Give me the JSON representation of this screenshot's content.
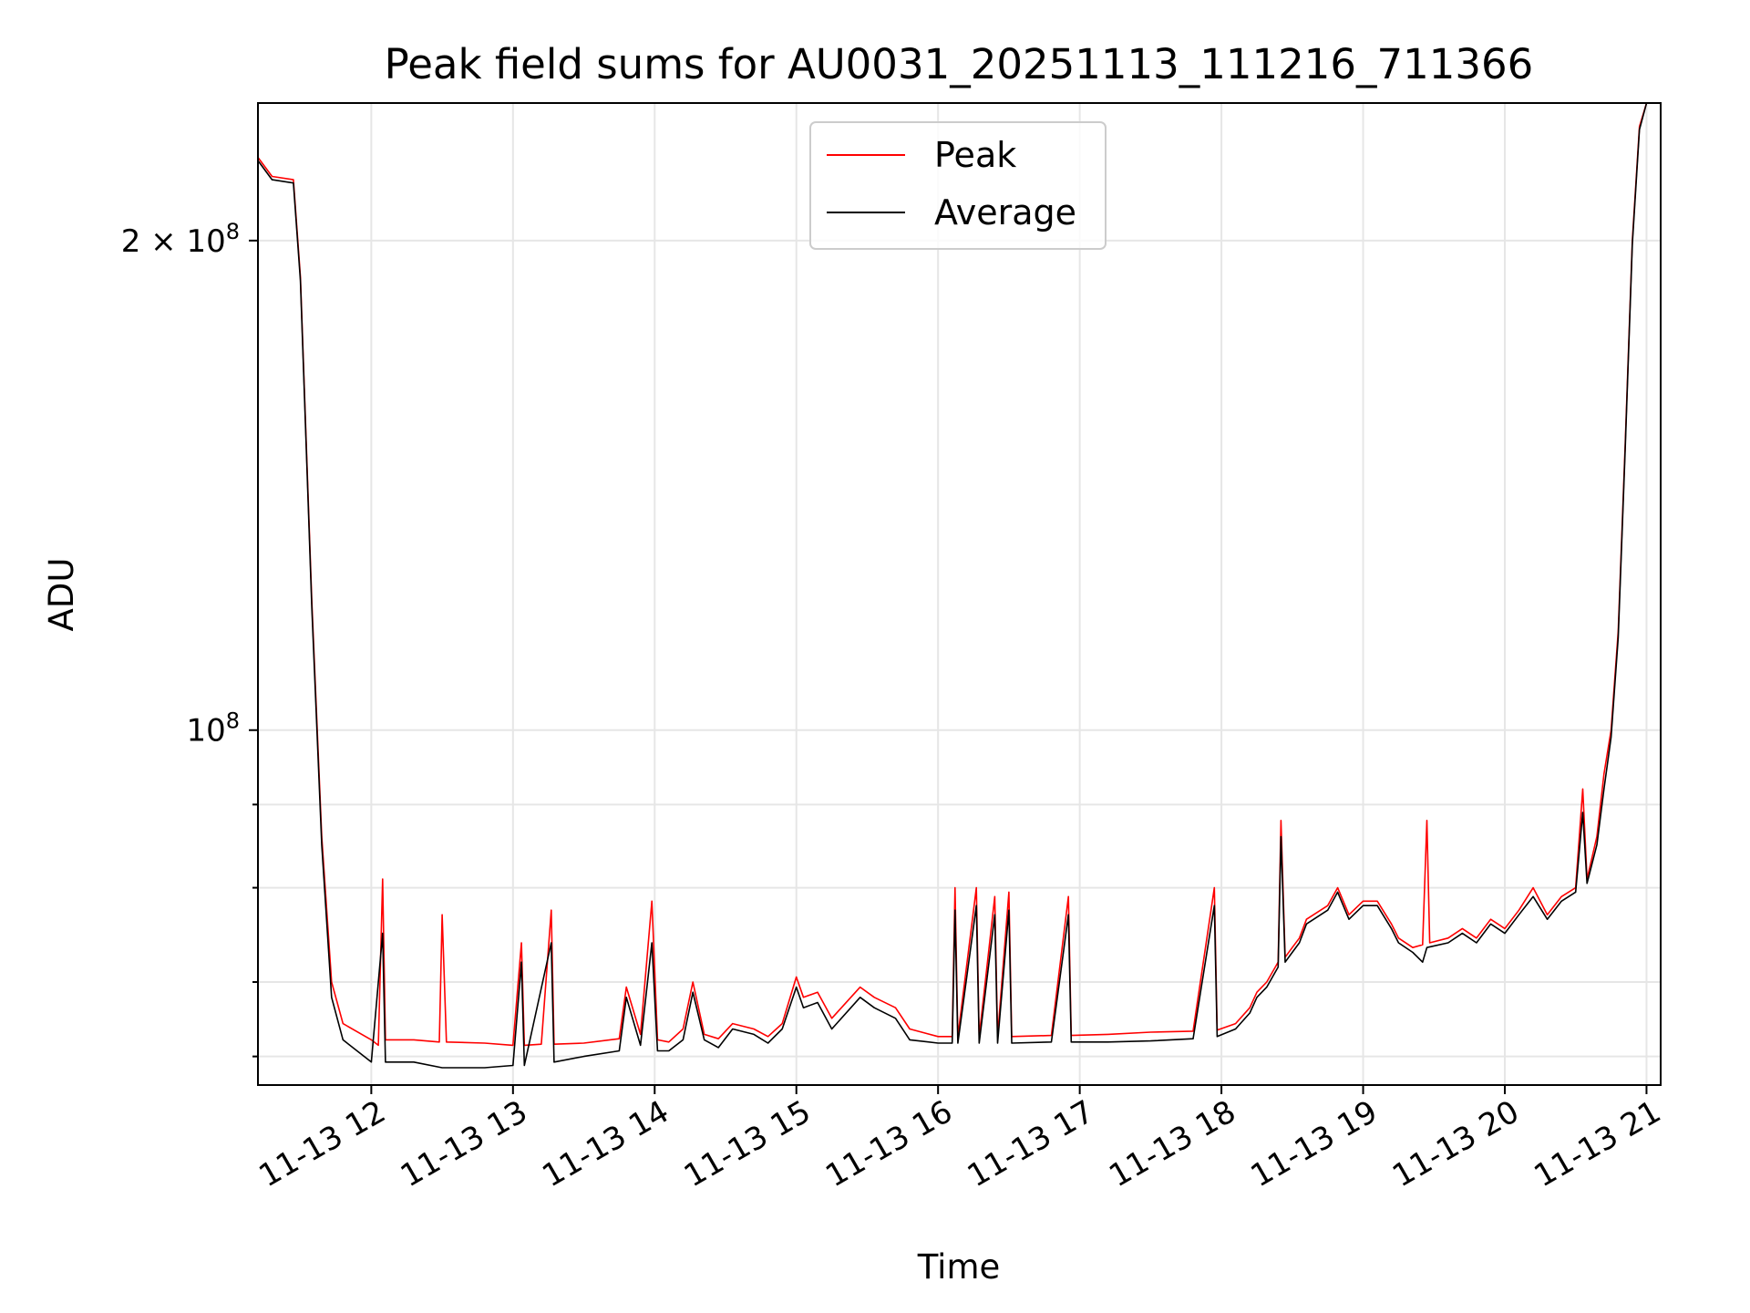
{
  "chart_data": {
    "type": "line",
    "title": "Peak field sums for AU0031_20251113_111216_711366",
    "xlabel": "Time",
    "ylabel": "ADU",
    "x_range_hours": [
      11.2,
      21.1
    ],
    "y_scale": "log",
    "ylim": [
      60500000,
      243000000
    ],
    "grid": true,
    "legend_position": "upper center",
    "x_ticks": [
      {
        "value": 12,
        "label": "11-13 12"
      },
      {
        "value": 13,
        "label": "11-13 13"
      },
      {
        "value": 14,
        "label": "11-13 14"
      },
      {
        "value": 15,
        "label": "11-13 15"
      },
      {
        "value": 16,
        "label": "11-13 16"
      },
      {
        "value": 17,
        "label": "11-13 17"
      },
      {
        "value": 18,
        "label": "11-13 18"
      },
      {
        "value": 19,
        "label": "11-13 19"
      },
      {
        "value": 20,
        "label": "11-13 20"
      },
      {
        "value": 21,
        "label": "11-13 21"
      }
    ],
    "y_major_ticks": [
      {
        "value": 100000000,
        "label": "10",
        "exp": "8"
      },
      {
        "value": 200000000,
        "label": "2 × 10",
        "exp": "8"
      }
    ],
    "y_minor_ticks": [
      63000000,
      70000000,
      80000000,
      90000000
    ],
    "series": [
      {
        "name": "Peak",
        "color": "#ff0000",
        "points": [
          [
            11.2,
            225000000
          ],
          [
            11.3,
            219000000
          ],
          [
            11.45,
            218000000
          ],
          [
            11.5,
            190000000
          ],
          [
            11.58,
            120000000
          ],
          [
            11.65,
            86000000
          ],
          [
            11.72,
            70000000
          ],
          [
            11.8,
            66000000
          ],
          [
            12.0,
            64500000
          ],
          [
            12.05,
            64000000
          ],
          [
            12.08,
            81000000
          ],
          [
            12.1,
            64500000
          ],
          [
            12.3,
            64500000
          ],
          [
            12.48,
            64300000
          ],
          [
            12.5,
            77000000
          ],
          [
            12.53,
            64300000
          ],
          [
            12.8,
            64200000
          ],
          [
            13.0,
            64000000
          ],
          [
            13.06,
            74000000
          ],
          [
            13.08,
            64000000
          ],
          [
            13.2,
            64100000
          ],
          [
            13.27,
            77500000
          ],
          [
            13.29,
            64100000
          ],
          [
            13.5,
            64200000
          ],
          [
            13.75,
            64600000
          ],
          [
            13.8,
            69500000
          ],
          [
            13.9,
            65000000
          ],
          [
            13.98,
            78500000
          ],
          [
            14.02,
            64500000
          ],
          [
            14.1,
            64300000
          ],
          [
            14.2,
            65500000
          ],
          [
            14.27,
            70000000
          ],
          [
            14.35,
            65000000
          ],
          [
            14.45,
            64600000
          ],
          [
            14.55,
            66000000
          ],
          [
            14.7,
            65500000
          ],
          [
            14.8,
            64800000
          ],
          [
            14.9,
            66000000
          ],
          [
            15.0,
            70500000
          ],
          [
            15.05,
            68500000
          ],
          [
            15.15,
            69000000
          ],
          [
            15.25,
            66500000
          ],
          [
            15.45,
            69500000
          ],
          [
            15.55,
            68500000
          ],
          [
            15.7,
            67500000
          ],
          [
            15.8,
            65500000
          ],
          [
            16.0,
            64800000
          ],
          [
            16.1,
            64800000
          ],
          [
            16.12,
            80000000
          ],
          [
            16.14,
            64800000
          ],
          [
            16.27,
            80000000
          ],
          [
            16.29,
            64800000
          ],
          [
            16.4,
            79000000
          ],
          [
            16.42,
            64800000
          ],
          [
            16.5,
            79500000
          ],
          [
            16.52,
            64800000
          ],
          [
            16.8,
            64900000
          ],
          [
            16.92,
            79000000
          ],
          [
            16.94,
            64900000
          ],
          [
            17.2,
            65000000
          ],
          [
            17.5,
            65200000
          ],
          [
            17.8,
            65300000
          ],
          [
            17.95,
            80000000
          ],
          [
            17.97,
            65400000
          ],
          [
            18.1,
            66000000
          ],
          [
            18.2,
            67500000
          ],
          [
            18.25,
            69000000
          ],
          [
            18.32,
            70000000
          ],
          [
            18.4,
            72000000
          ],
          [
            18.42,
            88000000
          ],
          [
            18.45,
            72500000
          ],
          [
            18.5,
            73500000
          ],
          [
            18.55,
            74500000
          ],
          [
            18.6,
            76500000
          ],
          [
            18.75,
            78000000
          ],
          [
            18.82,
            80000000
          ],
          [
            18.9,
            77000000
          ],
          [
            19.0,
            78500000
          ],
          [
            19.1,
            78500000
          ],
          [
            19.2,
            76000000
          ],
          [
            19.25,
            74500000
          ],
          [
            19.35,
            73500000
          ],
          [
            19.42,
            73800000
          ],
          [
            19.45,
            88000000
          ],
          [
            19.47,
            74000000
          ],
          [
            19.6,
            74500000
          ],
          [
            19.7,
            75500000
          ],
          [
            19.8,
            74500000
          ],
          [
            19.9,
            76500000
          ],
          [
            20.0,
            75500000
          ],
          [
            20.1,
            77500000
          ],
          [
            20.2,
            80000000
          ],
          [
            20.3,
            77000000
          ],
          [
            20.4,
            79000000
          ],
          [
            20.5,
            80000000
          ],
          [
            20.55,
            92000000
          ],
          [
            20.58,
            81000000
          ],
          [
            20.65,
            86000000
          ],
          [
            20.7,
            94000000
          ],
          [
            20.75,
            100000000
          ],
          [
            20.8,
            115000000
          ],
          [
            20.85,
            150000000
          ],
          [
            20.9,
            200000000
          ],
          [
            20.95,
            235000000
          ],
          [
            21.0,
            243000000
          ]
        ]
      },
      {
        "name": "Average",
        "color": "#000000",
        "points": [
          [
            11.2,
            224000000
          ],
          [
            11.3,
            218000000
          ],
          [
            11.45,
            217000000
          ],
          [
            11.5,
            189000000
          ],
          [
            11.58,
            119000000
          ],
          [
            11.65,
            85000000
          ],
          [
            11.72,
            68500000
          ],
          [
            11.8,
            64500000
          ],
          [
            12.0,
            62500000
          ],
          [
            12.08,
            75000000
          ],
          [
            12.1,
            62500000
          ],
          [
            12.3,
            62500000
          ],
          [
            12.5,
            62000000
          ],
          [
            12.8,
            62000000
          ],
          [
            13.0,
            62200000
          ],
          [
            13.06,
            72000000
          ],
          [
            13.08,
            62200000
          ],
          [
            13.27,
            74000000
          ],
          [
            13.29,
            62500000
          ],
          [
            13.5,
            63000000
          ],
          [
            13.75,
            63500000
          ],
          [
            13.8,
            68500000
          ],
          [
            13.9,
            64000000
          ],
          [
            13.98,
            74000000
          ],
          [
            14.02,
            63500000
          ],
          [
            14.1,
            63500000
          ],
          [
            14.2,
            64500000
          ],
          [
            14.27,
            69000000
          ],
          [
            14.35,
            64500000
          ],
          [
            14.45,
            63800000
          ],
          [
            14.55,
            65500000
          ],
          [
            14.7,
            65000000
          ],
          [
            14.8,
            64200000
          ],
          [
            14.9,
            65500000
          ],
          [
            15.0,
            69500000
          ],
          [
            15.05,
            67500000
          ],
          [
            15.15,
            68000000
          ],
          [
            15.25,
            65500000
          ],
          [
            15.45,
            68500000
          ],
          [
            15.55,
            67500000
          ],
          [
            15.7,
            66500000
          ],
          [
            15.8,
            64500000
          ],
          [
            16.0,
            64200000
          ],
          [
            16.1,
            64200000
          ],
          [
            16.12,
            77500000
          ],
          [
            16.14,
            64200000
          ],
          [
            16.27,
            78000000
          ],
          [
            16.29,
            64200000
          ],
          [
            16.4,
            77000000
          ],
          [
            16.42,
            64200000
          ],
          [
            16.5,
            77500000
          ],
          [
            16.52,
            64200000
          ],
          [
            16.8,
            64300000
          ],
          [
            16.92,
            77000000
          ],
          [
            16.94,
            64300000
          ],
          [
            17.2,
            64300000
          ],
          [
            17.5,
            64400000
          ],
          [
            17.8,
            64600000
          ],
          [
            17.95,
            78000000
          ],
          [
            17.97,
            64800000
          ],
          [
            18.1,
            65500000
          ],
          [
            18.2,
            67000000
          ],
          [
            18.25,
            68500000
          ],
          [
            18.32,
            69500000
          ],
          [
            18.4,
            71500000
          ],
          [
            18.42,
            86000000
          ],
          [
            18.45,
            72000000
          ],
          [
            18.5,
            73000000
          ],
          [
            18.55,
            74000000
          ],
          [
            18.6,
            76000000
          ],
          [
            18.75,
            77500000
          ],
          [
            18.82,
            79500000
          ],
          [
            18.9,
            76500000
          ],
          [
            19.0,
            78000000
          ],
          [
            19.1,
            78000000
          ],
          [
            19.2,
            75500000
          ],
          [
            19.25,
            74000000
          ],
          [
            19.35,
            73000000
          ],
          [
            19.42,
            72000000
          ],
          [
            19.45,
            73500000
          ],
          [
            19.6,
            74000000
          ],
          [
            19.7,
            75000000
          ],
          [
            19.8,
            74000000
          ],
          [
            19.9,
            76000000
          ],
          [
            20.0,
            75000000
          ],
          [
            20.1,
            77000000
          ],
          [
            20.2,
            79000000
          ],
          [
            20.3,
            76500000
          ],
          [
            20.4,
            78500000
          ],
          [
            20.5,
            79500000
          ],
          [
            20.55,
            89000000
          ],
          [
            20.58,
            80500000
          ],
          [
            20.65,
            85000000
          ],
          [
            20.7,
            92000000
          ],
          [
            20.75,
            99000000
          ],
          [
            20.8,
            114000000
          ],
          [
            20.85,
            149000000
          ],
          [
            20.9,
            199000000
          ],
          [
            20.95,
            234000000
          ],
          [
            21.0,
            243000000
          ]
        ]
      }
    ]
  }
}
